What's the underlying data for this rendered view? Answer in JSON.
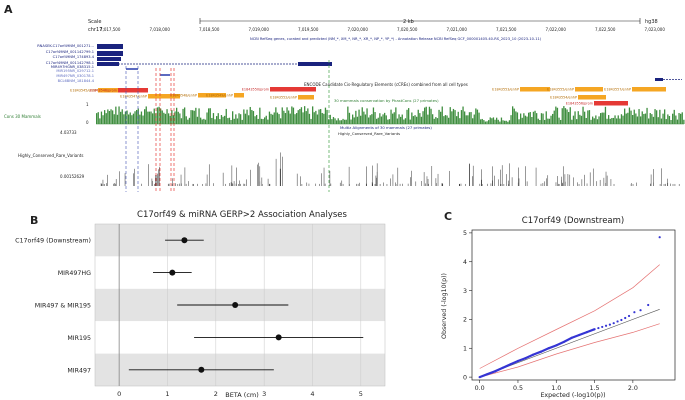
{
  "panels": {
    "a": "A",
    "b": "B",
    "c": "C"
  },
  "browser": {
    "scale_label": "Scale",
    "chrom_label": "chr17:",
    "scale_bar_text": "2 kb",
    "assembly": "hg38",
    "coordinates": [
      "7,017,500",
      "7,018,000",
      "7,018,500",
      "7,019,000",
      "7,019,500",
      "7,020,000",
      "7,020,500",
      "7,021,000",
      "7,021,500",
      "7,022,000",
      "7,022,500",
      "7,023,000"
    ],
    "refseq_title": "NCBI RefSeq genes, curated and predicted (NM_*, XM_*, NR_*, XR_*, NP_*, YP_*) - Annotation Release NCBI RefSeq GCF_000001405.40-RS_2023_10 (2023-10-11)",
    "gene_labels": [
      "RNASEK-C17orf49NM_001271...",
      "C17orf49NM_001142799.1",
      "C17orf49NM_174893.4",
      "C17orf49NM_001142798.1",
      "MIR497HGNR_038315.1",
      "MIR195NR_029712.1",
      "MIR497NR_030178.1",
      "BCL6BNM_181844.4"
    ],
    "ccre_title": "ENCODE Candidate Cis-Regulatory Elements (cCREs) combined from all cell types",
    "ccre_labels": [
      "E1843545/enhP",
      "E1843546/prom",
      "E1843547/enhP",
      "E1843548/enhP",
      "E1843549/enhP",
      "E1843550/prom",
      "E1843552/enhP",
      "E1843553/enhP",
      "E1843555/enhP",
      "E1843557/enhP",
      "E1843554/enhP",
      "E1843556/prom"
    ],
    "cons_title": "30 mammals conservation by PhastCons (27 primates)",
    "cons_label": "Cons 30 Mammals",
    "cons_ticks": [
      "1",
      "0"
    ],
    "multiz_title": "Multiz Alignments of 30 mammals (27 primates)",
    "hcrv_title": "Highly_Conserved_Rare_Variants",
    "hcrv_label": "Highly_Conserved_Rare_Variants",
    "hcrv_max": "4.03733",
    "hcrv_min": "0.00152629"
  },
  "chart_data": [
    {
      "type": "forest",
      "title": "C17orf49 & miRNA GERP>2 Association Analyses",
      "xlabel": "BETA (cm)",
      "xlim": [
        -0.5,
        5.5
      ],
      "xticks": [
        "0",
        "1",
        "2",
        "3",
        "4",
        "5"
      ],
      "categories": [
        "C17orf49 (Downstream)",
        "MIR497HG",
        "MIR497 & MIR195",
        "MIR195",
        "MIR497"
      ],
      "estimate": [
        1.35,
        1.1,
        2.4,
        3.3,
        1.7
      ],
      "ci_low": [
        0.95,
        0.7,
        1.2,
        1.55,
        0.2
      ],
      "ci_high": [
        1.75,
        1.5,
        3.5,
        5.05,
        3.2
      ]
    },
    {
      "type": "scatter",
      "title": "C17orf49 (Downstream)",
      "xlabel": "Expected (-log10(p))",
      "ylabel": "Observed (-log10(p))",
      "xlim": [
        -0.1,
        2.55
      ],
      "ylim": [
        -0.1,
        5.1
      ],
      "xticks": [
        "0.0",
        "0.5",
        "1.0",
        "1.5",
        "2.0"
      ],
      "yticks": [
        "0",
        "1",
        "2",
        "3",
        "4",
        "5"
      ],
      "points": [
        [
          0.0,
          0.0
        ],
        [
          0.1,
          0.1
        ],
        [
          0.2,
          0.2
        ],
        [
          0.3,
          0.32
        ],
        [
          0.4,
          0.44
        ],
        [
          0.5,
          0.56
        ],
        [
          0.6,
          0.66
        ],
        [
          0.7,
          0.78
        ],
        [
          0.8,
          0.88
        ],
        [
          0.9,
          1.0
        ],
        [
          1.0,
          1.1
        ],
        [
          1.1,
          1.22
        ],
        [
          1.2,
          1.36
        ],
        [
          1.3,
          1.46
        ],
        [
          1.4,
          1.56
        ],
        [
          1.5,
          1.66
        ],
        [
          1.55,
          1.7
        ],
        [
          1.6,
          1.74
        ],
        [
          1.65,
          1.78
        ],
        [
          1.7,
          1.82
        ],
        [
          1.75,
          1.87
        ],
        [
          1.8,
          1.93
        ],
        [
          1.85,
          1.98
        ],
        [
          1.9,
          2.05
        ],
        [
          1.95,
          2.12
        ],
        [
          2.02,
          2.25
        ],
        [
          2.1,
          2.32
        ],
        [
          2.2,
          2.5
        ],
        [
          2.35,
          4.85
        ]
      ],
      "diag": [
        [
          0,
          0
        ],
        [
          2.35,
          2.35
        ]
      ],
      "ci_upper": [
        [
          0,
          0.3
        ],
        [
          0.5,
          1.0
        ],
        [
          1.0,
          1.65
        ],
        [
          1.5,
          2.3
        ],
        [
          2.0,
          3.1
        ],
        [
          2.35,
          3.9
        ]
      ],
      "ci_lower": [
        [
          0,
          0
        ],
        [
          0.5,
          0.35
        ],
        [
          1.0,
          0.8
        ],
        [
          1.5,
          1.2
        ],
        [
          2.0,
          1.55
        ],
        [
          2.35,
          1.85
        ]
      ]
    }
  ]
}
